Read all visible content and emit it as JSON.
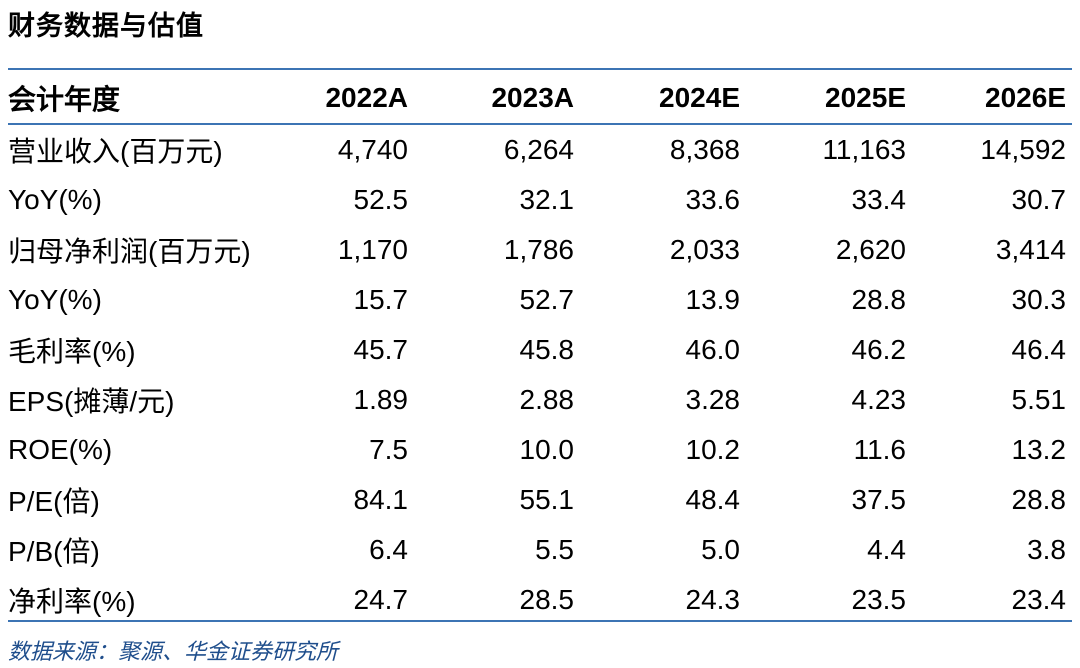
{
  "title": "财务数据与估值",
  "header": [
    "会计年度",
    "2022A",
    "2023A",
    "2024E",
    "2025E",
    "2026E"
  ],
  "rows": [
    {
      "label": "营业收入(百万元)",
      "values": [
        "4,740",
        "6,264",
        "8,368",
        "11,163",
        "14,592"
      ]
    },
    {
      "label": "YoY(%)",
      "values": [
        "52.5",
        "32.1",
        "33.6",
        "33.4",
        "30.7"
      ]
    },
    {
      "label": "归母净利润(百万元)",
      "values": [
        "1,170",
        "1,786",
        "2,033",
        "2,620",
        "3,414"
      ]
    },
    {
      "label": "YoY(%)",
      "values": [
        "15.7",
        "52.7",
        "13.9",
        "28.8",
        "30.3"
      ]
    },
    {
      "label": "毛利率(%)",
      "values": [
        "45.7",
        "45.8",
        "46.0",
        "46.2",
        "46.4"
      ]
    },
    {
      "label": "EPS(摊薄/元)",
      "values": [
        "1.89",
        "2.88",
        "3.28",
        "4.23",
        "5.51"
      ]
    },
    {
      "label": "ROE(%)",
      "values": [
        "7.5",
        "10.0",
        "10.2",
        "11.6",
        "13.2"
      ]
    },
    {
      "label": "P/E(倍)",
      "values": [
        "84.1",
        "55.1",
        "48.4",
        "37.5",
        "28.8"
      ]
    },
    {
      "label": "P/B(倍)",
      "values": [
        "6.4",
        "5.5",
        "5.0",
        "4.4",
        "3.8"
      ]
    },
    {
      "label": "净利率(%)",
      "values": [
        "24.7",
        "28.5",
        "24.3",
        "23.5",
        "23.4"
      ]
    }
  ],
  "source": "数据来源：聚源、华金证券研究所",
  "colors": {
    "rule": "#3c74b4",
    "source_text": "#1f4e8c"
  }
}
